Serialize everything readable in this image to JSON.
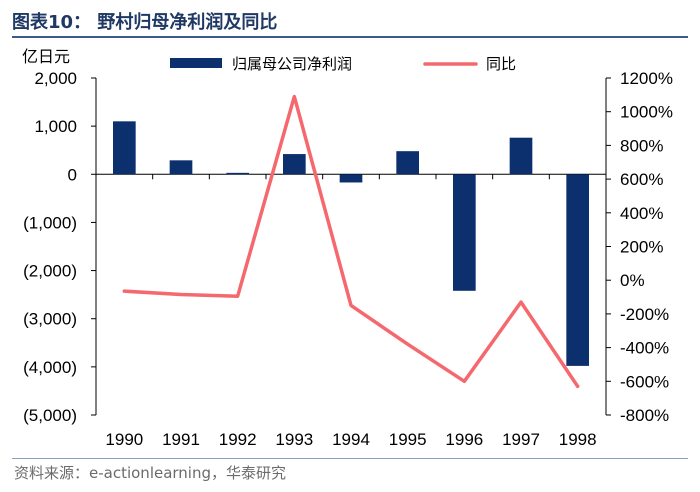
{
  "header": {
    "title": "图表10：  野村归母净利润及同比",
    "source": "资料来源：e-actionlearning，华泰研究"
  },
  "colors": {
    "bar": "#0c2f6e",
    "line": "#f4686e",
    "title": "#1f3864"
  },
  "chart_data": {
    "type": "bar+line",
    "title": "野村归母净利润及同比",
    "unit_label": "亿日元",
    "categories": [
      "1990",
      "1991",
      "1992",
      "1993",
      "1994",
      "1995",
      "1996",
      "1997",
      "1998"
    ],
    "series": [
      {
        "name": "归属母公司净利润",
        "type": "bar",
        "axis": "left",
        "values": [
          1100,
          290,
          30,
          420,
          -170,
          480,
          -2420,
          760,
          -3980
        ]
      },
      {
        "name": "同比",
        "type": "line",
        "axis": "right",
        "values": [
          -65,
          -85,
          -95,
          1090,
          -150,
          -380,
          -600,
          -130,
          -630
        ]
      }
    ],
    "y_left": {
      "range": [
        -5000,
        2000
      ],
      "ticks": [
        2000,
        1000,
        0,
        -1000,
        -2000,
        -3000,
        -4000,
        -5000
      ],
      "tick_labels": [
        "2,000",
        "1,000",
        "0",
        "(1,000)",
        "(2,000)",
        "(3,000)",
        "(4,000)",
        "(5,000)"
      ]
    },
    "y_right": {
      "range": [
        -800,
        1200
      ],
      "ticks": [
        1200,
        1000,
        800,
        600,
        400,
        200,
        0,
        -200,
        -400,
        -600,
        -800
      ],
      "tick_labels": [
        "1200%",
        "1000%",
        "800%",
        "600%",
        "400%",
        "200%",
        "0%",
        "-200%",
        "-400%",
        "-600%",
        "-800%"
      ]
    },
    "legend": {
      "placement": "top",
      "entries": [
        "归属母公司净利润",
        "同比"
      ]
    }
  }
}
